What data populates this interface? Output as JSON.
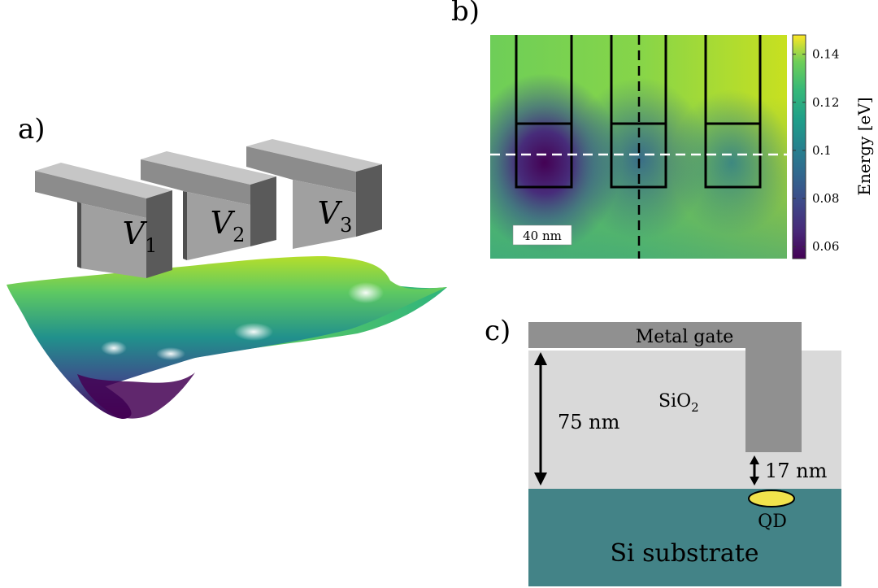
{
  "panels": {
    "a": {
      "label": "a)"
    },
    "b": {
      "label": "b)"
    },
    "c": {
      "label": "c)"
    }
  },
  "gates": [
    {
      "base": "V",
      "sub": "1"
    },
    {
      "base": "V",
      "sub": "2"
    },
    {
      "base": "V",
      "sub": "3"
    }
  ],
  "panel_b": {
    "scalebar_label": "40 nm",
    "colorbar": {
      "label": "Energy [eV]",
      "ticks": [
        "0.14",
        "0.12",
        "0.1",
        "0.08",
        "0.06"
      ],
      "range": [
        0.055,
        0.148
      ],
      "colormap": "viridis"
    }
  },
  "panel_c": {
    "gate_label": "Metal gate",
    "oxide": {
      "base": "SiO",
      "sub": "2"
    },
    "oxide_thickness": "75 nm",
    "gate_gap": "17 nm",
    "dot_label": "QD",
    "substrate_label": "Si substrate",
    "colors": {
      "gate": "#909090",
      "oxide": "#d9d9d9",
      "substrate": "#438387",
      "dot": "#f2e34c"
    }
  }
}
